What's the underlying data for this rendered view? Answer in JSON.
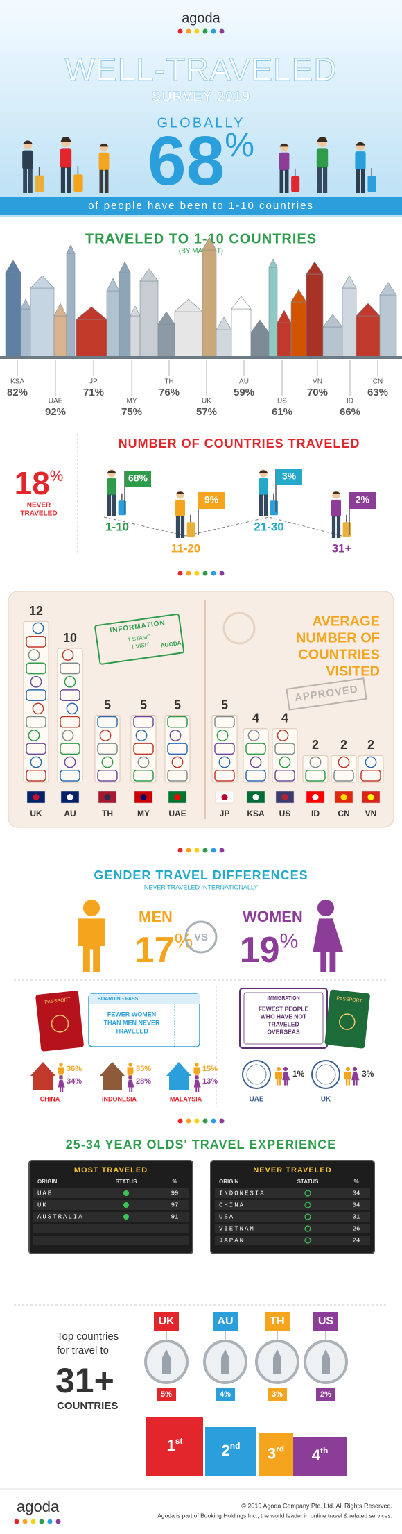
{
  "header": {
    "logo": "agoda",
    "title": "WELL-TRAVELED",
    "subtitle": "SURVEY 2019",
    "globally": "GLOBALLY",
    "big_number": "68",
    "big_unit": "%",
    "caption": "of people have been to 1-10 countries"
  },
  "by_market": {
    "title": "TRAVELED TO 1-10 COUNTRIES",
    "subtitle": "(BY MARKET)",
    "markets": [
      {
        "code": "KSA",
        "value": "82%"
      },
      {
        "code": "UAE",
        "value": "92%"
      },
      {
        "code": "JP",
        "value": "71%"
      },
      {
        "code": "MY",
        "value": "75%"
      },
      {
        "code": "TH",
        "value": "76%"
      },
      {
        "code": "UK",
        "value": "57%"
      },
      {
        "code": "AU",
        "value": "59%"
      },
      {
        "code": "US",
        "value": "61%"
      },
      {
        "code": "VN",
        "value": "70%"
      },
      {
        "code": "ID",
        "value": "66%"
      },
      {
        "code": "CN",
        "value": "63%"
      }
    ]
  },
  "countries_traveled": {
    "title": "NUMBER OF COUNTRIES TRAVELED",
    "never": {
      "number": "18",
      "unit": "%",
      "label_lines": [
        "NEVER",
        "TRAVELED"
      ]
    },
    "steps": [
      {
        "share": "68%",
        "range": "1-10"
      },
      {
        "share": "9%",
        "range": "11-20"
      },
      {
        "share": "3%",
        "range": "21-30"
      },
      {
        "share": "2%",
        "range": "31+"
      }
    ]
  },
  "average_visited": {
    "title_lines": [
      "AVERAGE",
      "NUMBER OF",
      "COUNTRIES",
      "VISITED"
    ],
    "stamp_info": {
      "heading": "INFORMATION",
      "text_lines": [
        "1 STAMP",
        "1 VISIT"
      ],
      "brand": "AGODA"
    },
    "approved": "APPROVED",
    "markets": [
      {
        "code": "UK",
        "value": 12
      },
      {
        "code": "AU",
        "value": 10
      },
      {
        "code": "TH",
        "value": 5
      },
      {
        "code": "MY",
        "value": 5
      },
      {
        "code": "UAE",
        "value": 5
      },
      {
        "code": "JP",
        "value": 5
      },
      {
        "code": "KSA",
        "value": 4
      },
      {
        "code": "US",
        "value": 4
      },
      {
        "code": "ID",
        "value": 2
      },
      {
        "code": "CN",
        "value": 2
      },
      {
        "code": "VN",
        "value": 2
      }
    ]
  },
  "gender": {
    "title": "GENDER TRAVEL DIFFERENCES",
    "subtitle": "NEVER TRAVELED INTERNATIONALLY",
    "men": {
      "label": "MEN",
      "number": "17",
      "unit": "%"
    },
    "vs": "VS",
    "women": {
      "label": "WOMEN",
      "number": "19",
      "unit": "%"
    },
    "boarding": {
      "passport": "PASSPORT",
      "pass": "BOARDING PASS",
      "note_lines": [
        "FEWER WOMEN",
        "THAN MEN NEVER",
        "TRAVELED"
      ]
    },
    "countries": [
      {
        "name": "CHINA",
        "men": "36%",
        "women": "34%"
      },
      {
        "name": "INDONESIA",
        "men": "35%",
        "women": "28%"
      },
      {
        "name": "MALAYSIA",
        "men": "15%",
        "women": "13%"
      }
    ],
    "immigration": {
      "stamp": "IMMIGRATION",
      "note_lines": [
        "FEWEST PEOPLE",
        "WHO HAVE NOT",
        "TRAVELED",
        "OVERSEAS"
      ],
      "passport": "PASSPORT"
    },
    "fewest": [
      {
        "name": "UAE",
        "value": "1%"
      },
      {
        "name": "UK",
        "value": "3%"
      }
    ]
  },
  "young_adults": {
    "title": "25-34 YEAR OLDS' TRAVEL EXPERIENCE",
    "boards": [
      {
        "title": "MOST TRAVELED",
        "columns": [
          "ORIGIN",
          "STATUS",
          "%"
        ],
        "rows": [
          {
            "origin": "UAE",
            "pct": "99"
          },
          {
            "origin": "UK",
            "pct": "97"
          },
          {
            "origin": "AUSTRALIA",
            "pct": "91"
          }
        ]
      },
      {
        "title": "NEVER TRAVELED",
        "columns": [
          "ORIGIN",
          "STATUS",
          "%"
        ],
        "rows": [
          {
            "origin": "INDONESIA",
            "pct": "34"
          },
          {
            "origin": "CHINA",
            "pct": "34"
          },
          {
            "origin": "USA",
            "pct": "31"
          },
          {
            "origin": "VIETNAM",
            "pct": "26"
          },
          {
            "origin": "JAPAN",
            "pct": "24"
          }
        ]
      }
    ]
  },
  "top_31": {
    "intro_lines": [
      "Top countries",
      "for travel to"
    ],
    "number": "31+",
    "label": "COUNTRIES",
    "countries": [
      {
        "code": "UK",
        "share": "5%",
        "rank": "1",
        "suffix": "st"
      },
      {
        "code": "AU",
        "share": "4%",
        "rank": "2",
        "suffix": "nd"
      },
      {
        "code": "TH",
        "share": "3%",
        "rank": "3",
        "suffix": "rd"
      },
      {
        "code": "US",
        "share": "2%",
        "rank": "4",
        "suffix": "th"
      }
    ]
  },
  "footer": {
    "logo": "agoda",
    "copyright": "© 2019 Agoda Company Pte. Ltd. All Rights Reserved.",
    "note": "Agoda is part of Booking Holdings Inc., the world leader in online travel & related services."
  }
}
